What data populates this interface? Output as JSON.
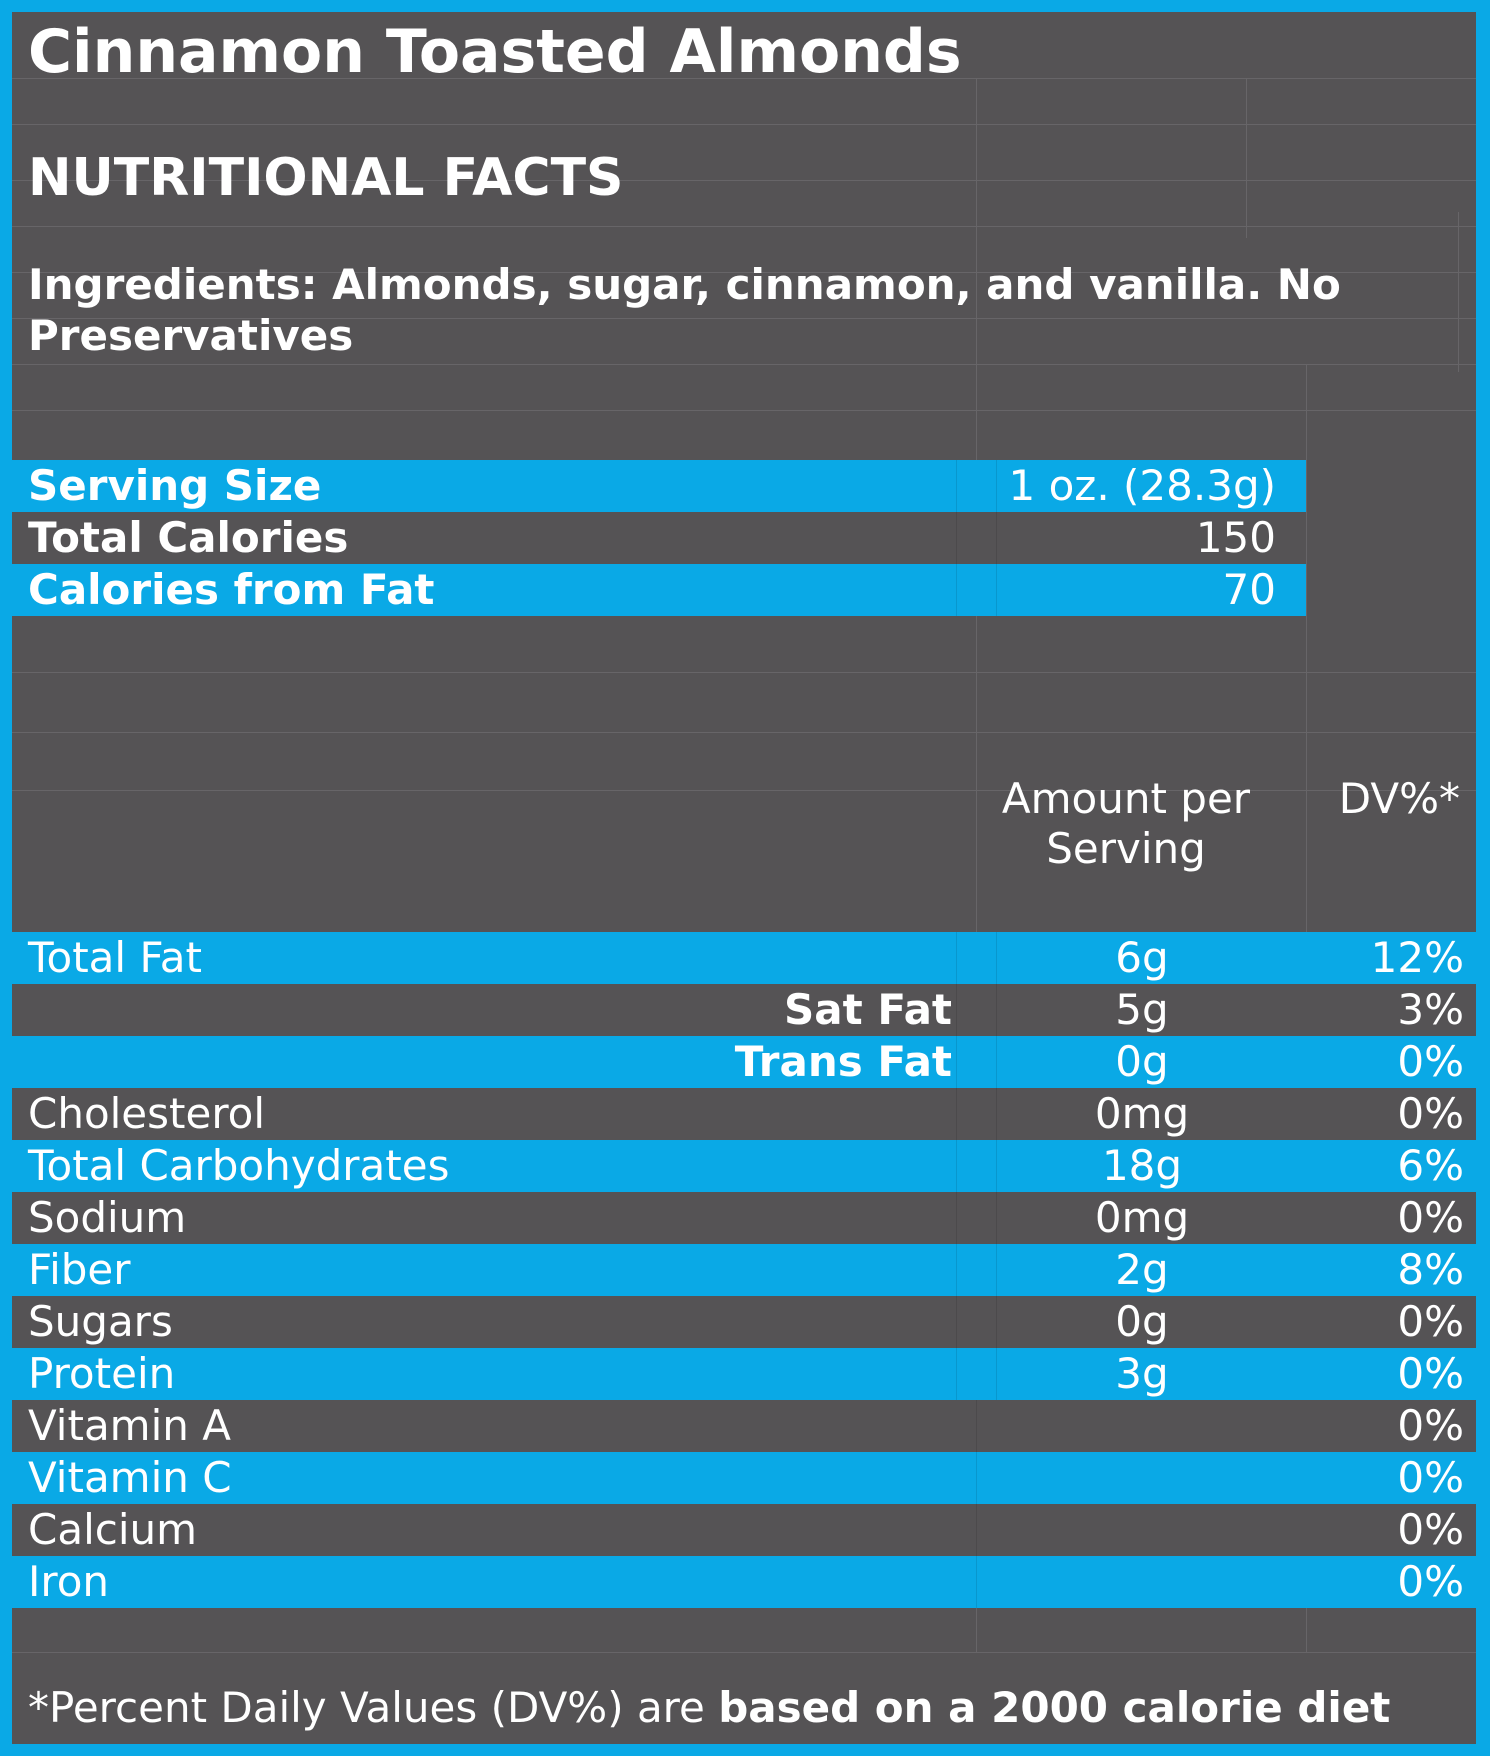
{
  "title": "Cinnamon Toasted Almonds",
  "heading": "NUTRITIONAL FACTS",
  "ingredients": "Ingredients: Almonds, sugar, cinnamon, and vanilla.  No Preservatives",
  "summary": [
    {
      "label": "Serving Size",
      "value": "1 oz. (28.3g)"
    },
    {
      "label": "Total Calories",
      "value": "150"
    },
    {
      "label": "Calories from Fat",
      "value": "70"
    }
  ],
  "columns": {
    "amount_line1": "Amount per",
    "amount_line2": "Serving",
    "dv": "DV%*"
  },
  "nutrients": [
    {
      "name": "Total Fat",
      "amount": "6g",
      "dv": "12%"
    },
    {
      "name": "Sat Fat",
      "amount": "5g",
      "dv": "3%"
    },
    {
      "name": "Trans Fat",
      "amount": "0g",
      "dv": "0%"
    },
    {
      "name": "Cholesterol",
      "amount": "0mg",
      "dv": "0%"
    },
    {
      "name": "Total Carbohydrates",
      "amount": "18g",
      "dv": "6%"
    },
    {
      "name": "Sodium",
      "amount": "0mg",
      "dv": "0%"
    },
    {
      "name": "Fiber",
      "amount": "2g",
      "dv": "8%"
    },
    {
      "name": "Sugars",
      "amount": "0g",
      "dv": "0%"
    },
    {
      "name": "Protein",
      "amount": "3g",
      "dv": "0%"
    },
    {
      "name": "Vitamin A",
      "amount": "",
      "dv": "0%"
    },
    {
      "name": "Vitamin C",
      "amount": "",
      "dv": "0%"
    },
    {
      "name": "Calcium",
      "amount": "",
      "dv": "0%"
    },
    {
      "name": "Iron",
      "amount": "",
      "dv": "0%"
    }
  ],
  "footnote": {
    "normal": "*Percent Daily Values (DV%) are ",
    "bold": "based on a 2000 calorie diet"
  },
  "colors": {
    "border_blue": "#0aa9e6",
    "panel_gray": "#555355",
    "text_white": "#ffffff"
  }
}
